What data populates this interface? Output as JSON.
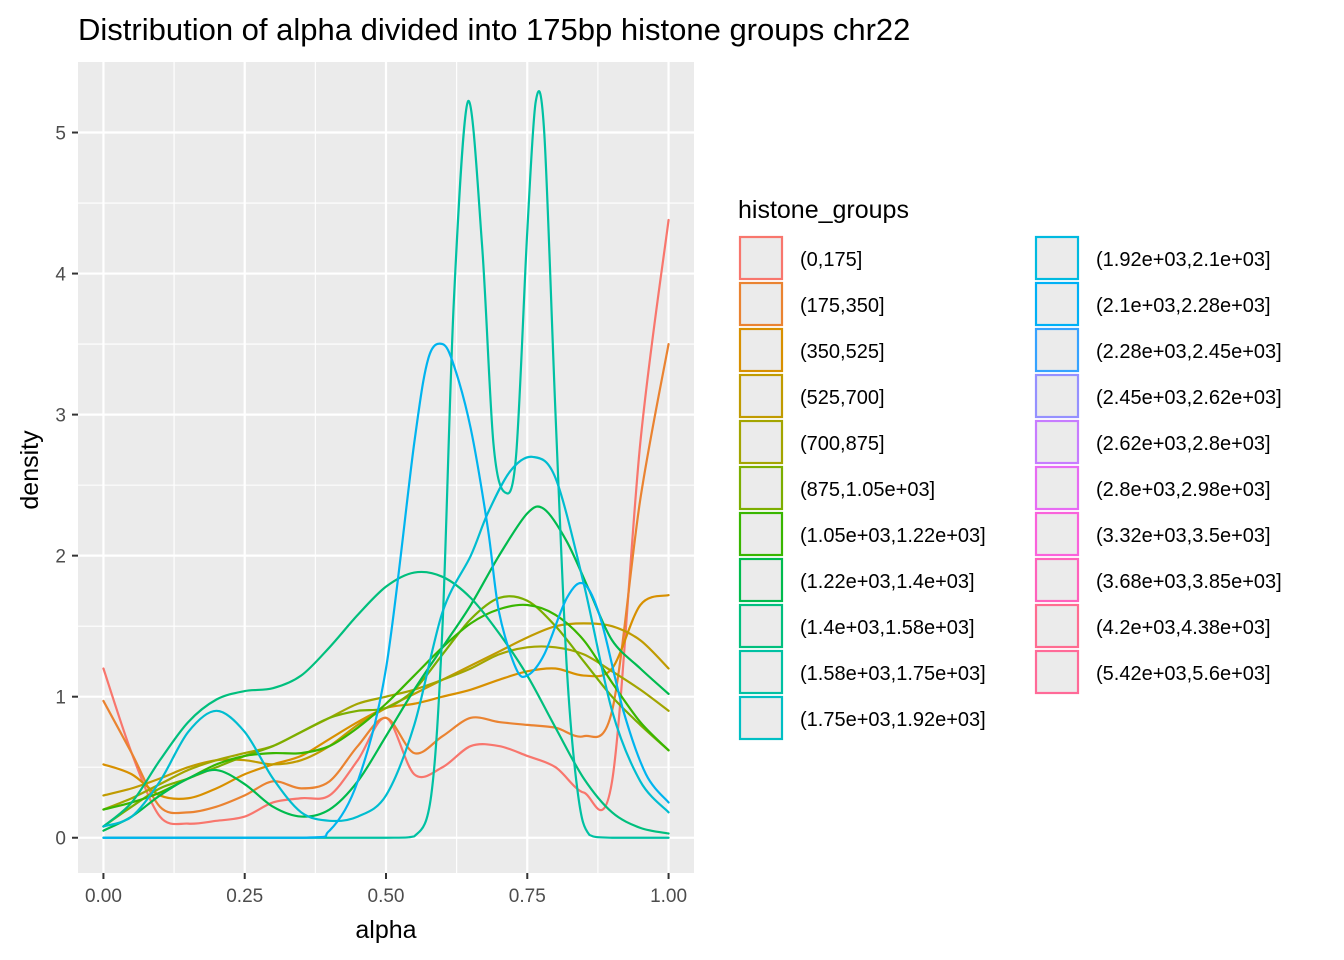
{
  "chart_data": {
    "type": "line",
    "title": "Distribution of alpha divided into 175bp histone groups chr22",
    "xlabel": "alpha",
    "ylabel": "density",
    "xlim": [
      -0.045,
      1.045
    ],
    "ylim": [
      -0.25,
      5.5
    ],
    "x_ticks": [
      0,
      0.25,
      0.5,
      0.75,
      1
    ],
    "x_tick_labels": [
      "0.00",
      "0.25",
      "0.50",
      "0.75",
      "1.00"
    ],
    "y_ticks": [
      0,
      1,
      2,
      3,
      4,
      5
    ],
    "y_tick_labels": [
      "0",
      "1",
      "2",
      "3",
      "4",
      "5"
    ],
    "grid": true,
    "legend": {
      "title": "histone_groups",
      "placement": "right",
      "columns": 2
    },
    "series": [
      {
        "name": "(0,175]",
        "color": "#F8766D",
        "x": [
          0,
          0.05,
          0.1,
          0.15,
          0.2,
          0.25,
          0.3,
          0.35,
          0.4,
          0.45,
          0.5,
          0.55,
          0.6,
          0.65,
          0.7,
          0.75,
          0.8,
          0.85,
          0.9,
          0.95,
          1.0
        ],
        "y": [
          1.2,
          0.6,
          0.15,
          0.1,
          0.12,
          0.15,
          0.25,
          0.28,
          0.3,
          0.55,
          0.85,
          0.45,
          0.5,
          0.65,
          0.65,
          0.58,
          0.5,
          0.32,
          0.4,
          2.8,
          4.38
        ]
      },
      {
        "name": "(175,350]",
        "color": "#EA8331",
        "x": [
          0,
          0.05,
          0.1,
          0.15,
          0.2,
          0.25,
          0.3,
          0.35,
          0.4,
          0.45,
          0.5,
          0.55,
          0.6,
          0.65,
          0.7,
          0.75,
          0.8,
          0.85,
          0.9,
          0.95,
          1.0
        ],
        "y": [
          0.97,
          0.6,
          0.22,
          0.18,
          0.22,
          0.3,
          0.4,
          0.35,
          0.4,
          0.65,
          0.85,
          0.6,
          0.72,
          0.85,
          0.82,
          0.8,
          0.78,
          0.72,
          0.9,
          2.4,
          3.5
        ]
      },
      {
        "name": "(350,525]",
        "color": "#D89000",
        "x": [
          0,
          0.05,
          0.1,
          0.15,
          0.2,
          0.25,
          0.3,
          0.35,
          0.4,
          0.45,
          0.5,
          0.55,
          0.6,
          0.65,
          0.7,
          0.75,
          0.8,
          0.85,
          0.9,
          0.95,
          1.0
        ],
        "y": [
          0.52,
          0.45,
          0.3,
          0.28,
          0.35,
          0.45,
          0.52,
          0.58,
          0.7,
          0.82,
          0.92,
          0.95,
          1.0,
          1.05,
          1.12,
          1.18,
          1.2,
          1.15,
          1.2,
          1.65,
          1.72
        ]
      },
      {
        "name": "(525,700]",
        "color": "#C09B00",
        "x": [
          0,
          0.05,
          0.1,
          0.15,
          0.2,
          0.25,
          0.3,
          0.35,
          0.4,
          0.45,
          0.5,
          0.55,
          0.6,
          0.65,
          0.7,
          0.75,
          0.8,
          0.85,
          0.9,
          0.95,
          1.0
        ],
        "y": [
          0.3,
          0.35,
          0.42,
          0.5,
          0.55,
          0.55,
          0.52,
          0.55,
          0.65,
          0.8,
          0.92,
          1.02,
          1.12,
          1.22,
          1.32,
          1.42,
          1.5,
          1.52,
          1.5,
          1.4,
          1.2
        ]
      },
      {
        "name": "(700,875]",
        "color": "#A3A500",
        "x": [
          0,
          0.05,
          0.1,
          0.15,
          0.2,
          0.25,
          0.3,
          0.35,
          0.4,
          0.45,
          0.5,
          0.55,
          0.6,
          0.65,
          0.7,
          0.75,
          0.8,
          0.85,
          0.9,
          0.95,
          1.0
        ],
        "y": [
          0.2,
          0.28,
          0.38,
          0.48,
          0.55,
          0.6,
          0.65,
          0.75,
          0.85,
          0.95,
          1.0,
          1.05,
          1.12,
          1.2,
          1.3,
          1.35,
          1.35,
          1.3,
          1.18,
          1.05,
          0.9
        ]
      },
      {
        "name": "(875,1.05e+03]",
        "color": "#7CAE00",
        "x": [
          0,
          0.05,
          0.1,
          0.15,
          0.2,
          0.25,
          0.3,
          0.35,
          0.4,
          0.45,
          0.5,
          0.55,
          0.6,
          0.65,
          0.7,
          0.75,
          0.8,
          0.85,
          0.9,
          0.95,
          1.0
        ],
        "y": [
          0.08,
          0.22,
          0.35,
          0.42,
          0.5,
          0.58,
          0.65,
          0.75,
          0.85,
          0.9,
          0.92,
          1.05,
          1.3,
          1.55,
          1.7,
          1.68,
          1.5,
          1.25,
          1.0,
          0.8,
          0.62
        ]
      },
      {
        "name": "(1.05e+03,1.22e+03]",
        "color": "#39B600",
        "x": [
          0,
          0.05,
          0.1,
          0.15,
          0.2,
          0.25,
          0.3,
          0.35,
          0.4,
          0.45,
          0.5,
          0.55,
          0.6,
          0.65,
          0.7,
          0.75,
          0.8,
          0.85,
          0.9,
          0.95,
          1.0
        ],
        "y": [
          0.2,
          0.25,
          0.32,
          0.42,
          0.52,
          0.58,
          0.6,
          0.6,
          0.65,
          0.78,
          0.95,
          1.15,
          1.35,
          1.52,
          1.62,
          1.65,
          1.58,
          1.4,
          1.1,
          0.82,
          0.62
        ]
      },
      {
        "name": "(1.22e+03,1.4e+03]",
        "color": "#00BB4E",
        "x": [
          0,
          0.05,
          0.1,
          0.15,
          0.2,
          0.25,
          0.3,
          0.35,
          0.4,
          0.45,
          0.5,
          0.55,
          0.6,
          0.65,
          0.7,
          0.75,
          0.78,
          0.82,
          0.86,
          0.9,
          0.95,
          1.0
        ],
        "y": [
          0.05,
          0.15,
          0.3,
          0.42,
          0.48,
          0.38,
          0.22,
          0.15,
          0.2,
          0.4,
          0.72,
          1.05,
          1.35,
          1.65,
          2.0,
          2.3,
          2.33,
          2.1,
          1.75,
          1.4,
          1.2,
          1.02
        ]
      },
      {
        "name": "(1.4e+03,1.58e+03]",
        "color": "#00BF7D",
        "x": [
          0,
          0.05,
          0.1,
          0.15,
          0.2,
          0.25,
          0.3,
          0.35,
          0.4,
          0.45,
          0.5,
          0.55,
          0.6,
          0.65,
          0.7,
          0.75,
          0.8,
          0.85,
          0.9,
          0.95,
          1.0
        ],
        "y": [
          0.08,
          0.25,
          0.55,
          0.82,
          0.98,
          1.04,
          1.06,
          1.15,
          1.35,
          1.58,
          1.78,
          1.88,
          1.85,
          1.7,
          1.45,
          1.15,
          0.78,
          0.42,
          0.18,
          0.07,
          0.03
        ]
      },
      {
        "name": "(1.58e+03,1.75e+03]",
        "color": "#00C1A3",
        "x": [
          0,
          0.3,
          0.5,
          0.55,
          0.58,
          0.6,
          0.62,
          0.645,
          0.67,
          0.69,
          0.71,
          0.73,
          0.75,
          0.765,
          0.78,
          0.8,
          0.82,
          0.84,
          0.86,
          0.9,
          1.0
        ],
        "y": [
          0,
          0,
          0,
          0.01,
          0.3,
          1.5,
          3.8,
          5.22,
          4.2,
          2.8,
          2.45,
          2.7,
          4.3,
          5.22,
          5.0,
          3.0,
          1.2,
          0.3,
          0.02,
          0,
          0
        ]
      },
      {
        "name": "(1.75e+03,1.92e+03]",
        "color": "#00BDD0",
        "x": [
          0,
          0.05,
          0.1,
          0.15,
          0.2,
          0.25,
          0.3,
          0.35,
          0.4,
          0.45,
          0.5,
          0.55,
          0.6,
          0.65,
          0.68,
          0.72,
          0.76,
          0.8,
          0.85,
          0.9,
          0.95,
          1.0
        ],
        "y": [
          0.08,
          0.15,
          0.4,
          0.75,
          0.9,
          0.75,
          0.42,
          0.18,
          0.12,
          0.15,
          0.3,
          0.8,
          1.6,
          2.0,
          2.3,
          2.6,
          2.7,
          2.55,
          1.8,
          0.9,
          0.4,
          0.18
        ]
      },
      {
        "name": "(1.92e+03,2.1e+03]",
        "color": "#00B4EF",
        "x": [
          0,
          0.35,
          0.4,
          0.45,
          0.5,
          0.55,
          0.575,
          0.6,
          0.62,
          0.65,
          0.68,
          0.7,
          0.73,
          0.75,
          0.78,
          0.82,
          0.85,
          0.88,
          0.92,
          0.96,
          1.0
        ],
        "y": [
          0,
          0,
          0.05,
          0.4,
          1.2,
          2.8,
          3.4,
          3.5,
          3.35,
          2.9,
          2.2,
          1.6,
          1.2,
          1.15,
          1.3,
          1.7,
          1.8,
          1.55,
          0.9,
          0.45,
          0.25
        ]
      }
    ],
    "legend_entries": [
      {
        "name": "(0,175]",
        "color": "#F8766D"
      },
      {
        "name": "(175,350]",
        "color": "#EA8331"
      },
      {
        "name": "(350,525]",
        "color": "#D89000"
      },
      {
        "name": "(525,700]",
        "color": "#C09B00"
      },
      {
        "name": "(700,875]",
        "color": "#A3A500"
      },
      {
        "name": "(875,1.05e+03]",
        "color": "#7CAE00"
      },
      {
        "name": "(1.05e+03,1.22e+03]",
        "color": "#39B600"
      },
      {
        "name": "(1.22e+03,1.4e+03]",
        "color": "#00BB4E"
      },
      {
        "name": "(1.4e+03,1.58e+03]",
        "color": "#00BF7D"
      },
      {
        "name": "(1.58e+03,1.75e+03]",
        "color": "#00C1A3"
      },
      {
        "name": "(1.75e+03,1.92e+03]",
        "color": "#00BFC4"
      },
      {
        "name": "(1.92e+03,2.1e+03]",
        "color": "#00BAE0"
      },
      {
        "name": "(2.1e+03,2.28e+03]",
        "color": "#00B0F6"
      },
      {
        "name": "(2.28e+03,2.45e+03]",
        "color": "#35A2FF"
      },
      {
        "name": "(2.45e+03,2.62e+03]",
        "color": "#9590FF"
      },
      {
        "name": "(2.62e+03,2.8e+03]",
        "color": "#C77CFF"
      },
      {
        "name": "(2.8e+03,2.98e+03]",
        "color": "#E76BF3"
      },
      {
        "name": "(3.32e+03,3.5e+03]",
        "color": "#FA62DB"
      },
      {
        "name": "(3.68e+03,3.85e+03]",
        "color": "#FF62BC"
      },
      {
        "name": "(4.2e+03,4.38e+03]",
        "color": "#FF6C91"
      },
      {
        "name": "(5.42e+03,5.6e+03]",
        "color": "#FF6A98"
      }
    ]
  }
}
